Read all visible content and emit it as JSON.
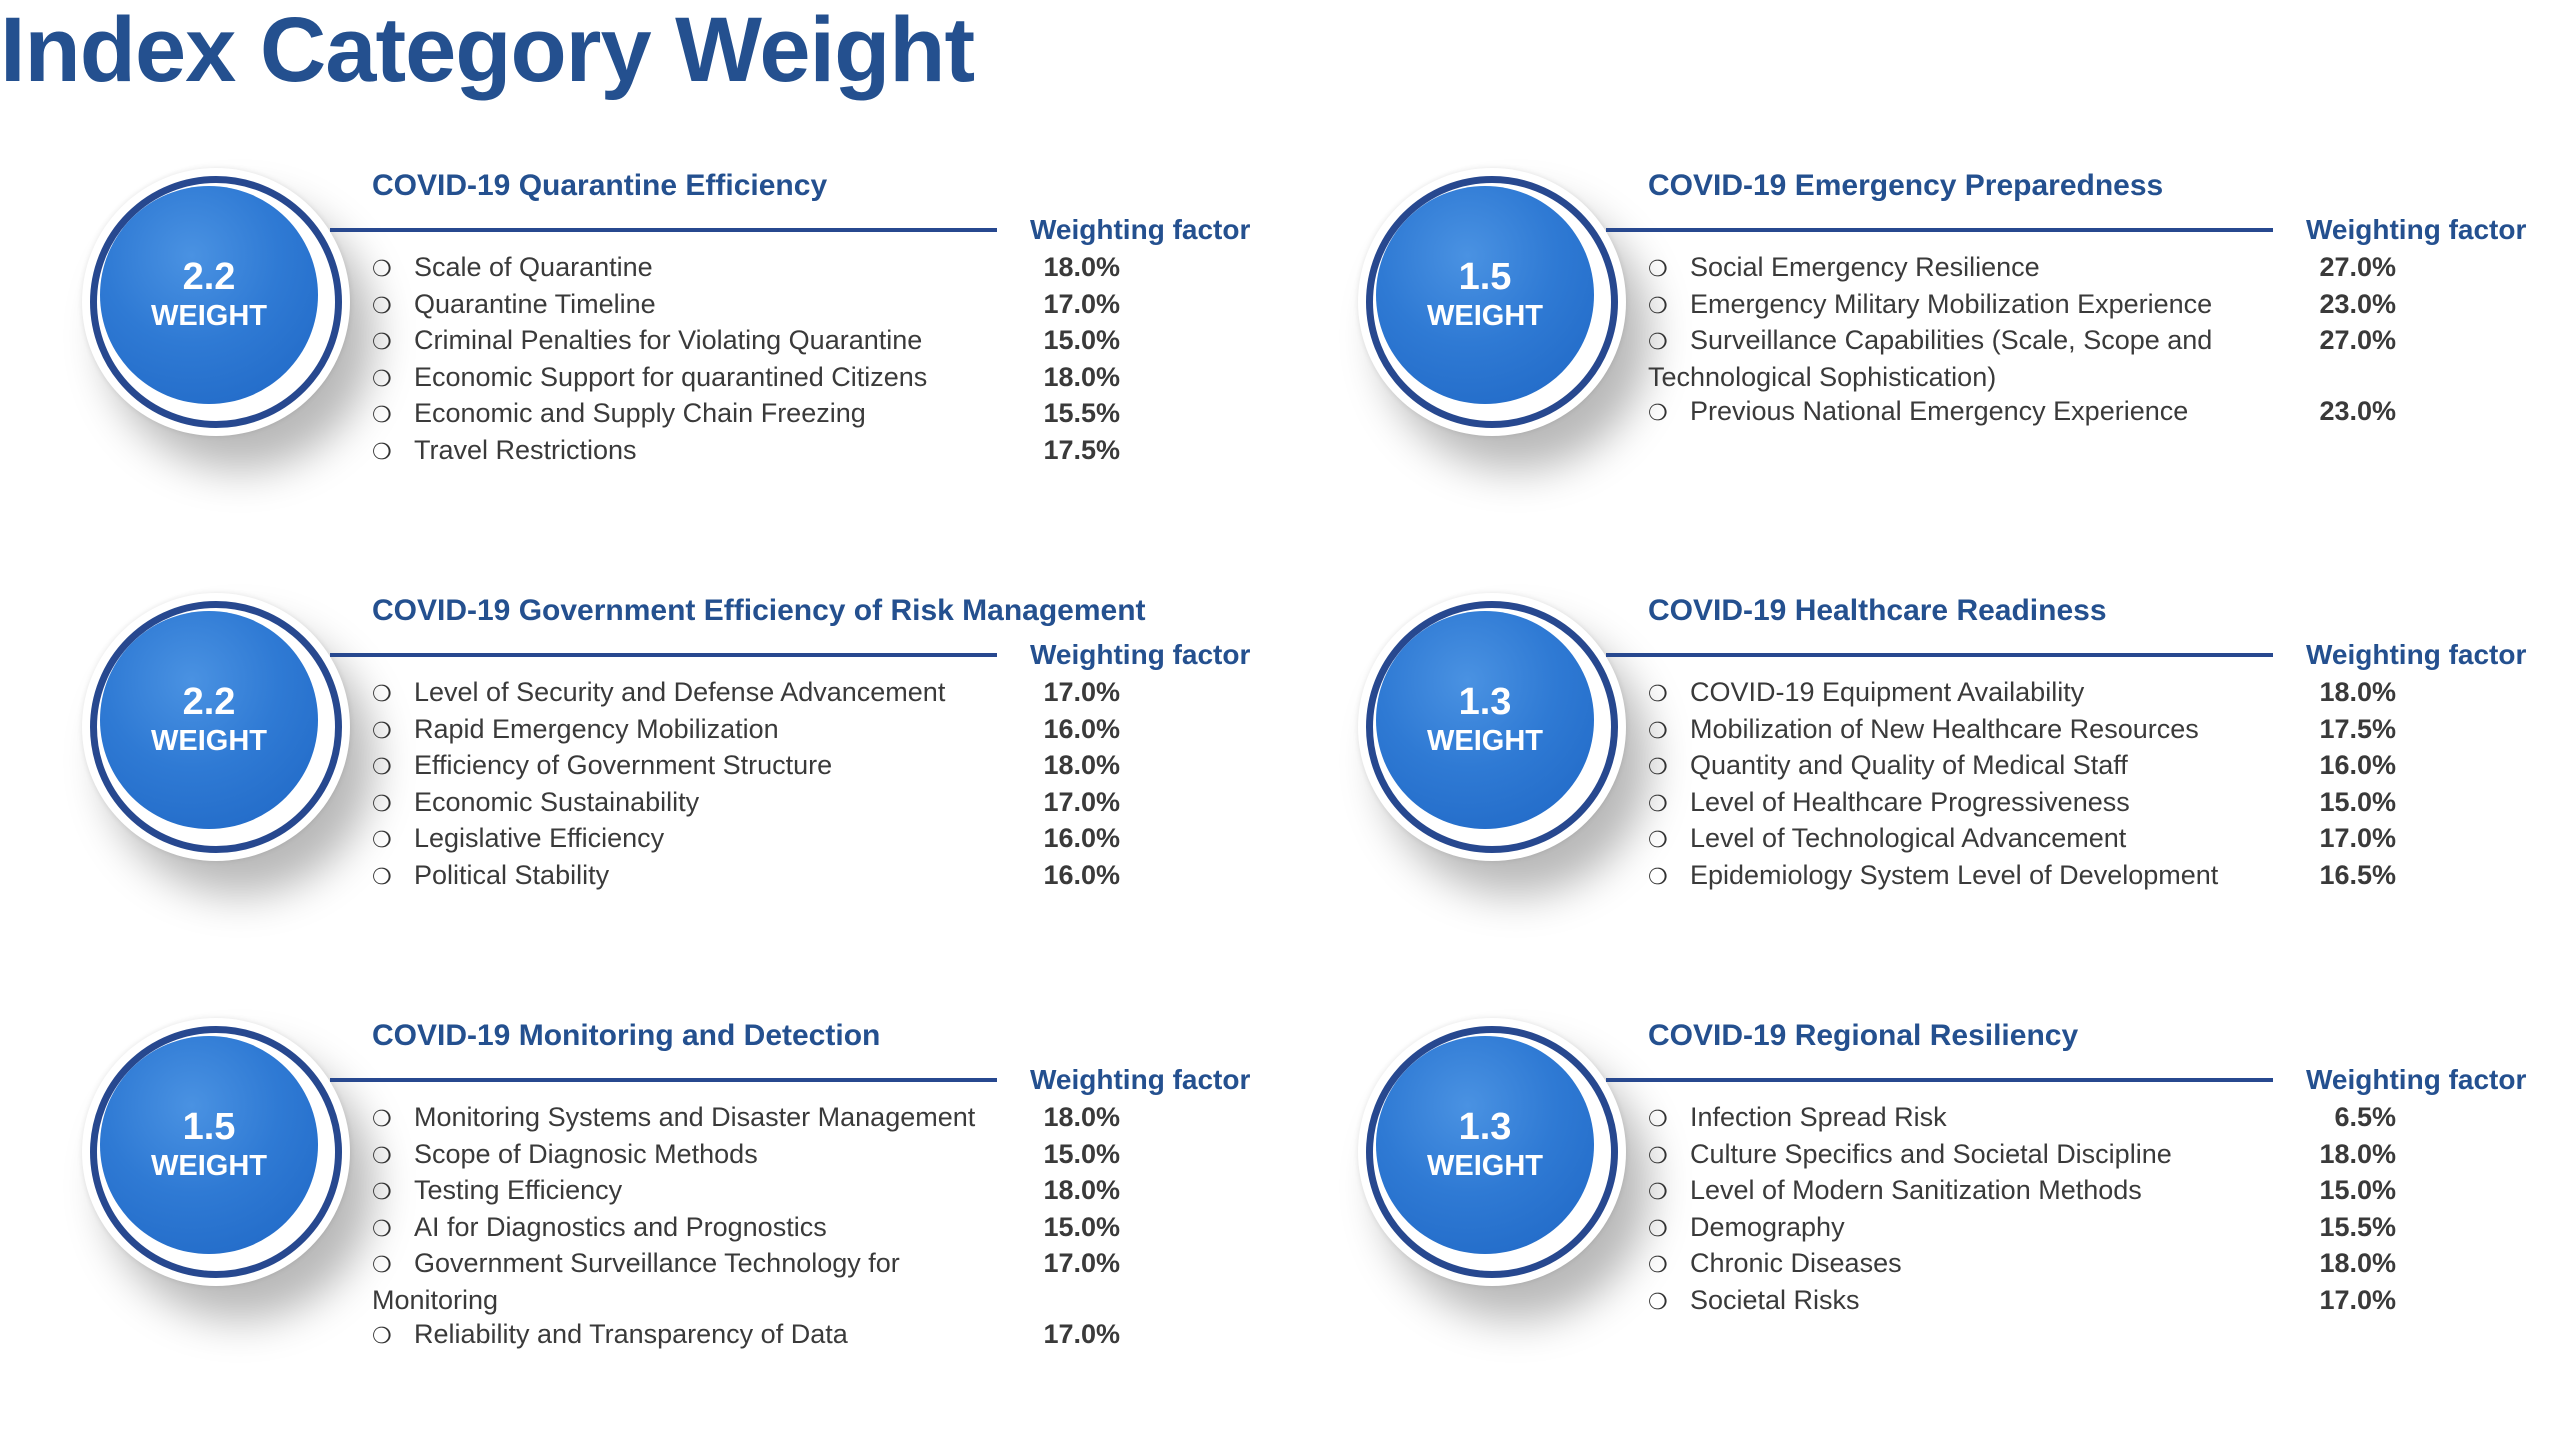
{
  "page": {
    "title": "Index Category Weight"
  },
  "common": {
    "weight_label": "WEIGHT",
    "factor_header": "Weighting factor",
    "bullet": "❍"
  },
  "panels": [
    {
      "title": "COVID-19 Quarantine Efficiency",
      "weight": "2.2",
      "items": [
        {
          "label": "Scale of Quarantine",
          "value": "18.0%"
        },
        {
          "label": "Quarantine Timeline",
          "value": "17.0%"
        },
        {
          "label": "Criminal Penalties for Violating Quarantine",
          "value": "15.0%"
        },
        {
          "label": "Economic Support for quarantined Citizens",
          "value": "18.0%"
        },
        {
          "label": "Economic and Supply Chain Freezing",
          "value": "15.5%"
        },
        {
          "label": "Travel Restrictions",
          "value": "17.5%"
        }
      ]
    },
    {
      "title": "COVID-19 Emergency Preparedness",
      "weight": "1.5",
      "items": [
        {
          "label": "Social Emergency Resilience",
          "value": "27.0%"
        },
        {
          "label": "Emergency Military Mobilization Experience",
          "value": "23.0%"
        },
        {
          "label": "Surveillance Capabilities (Scale, Scope and Technological Sophistication)",
          "value": "27.0%"
        },
        {
          "label": "Previous National Emergency Experience",
          "value": "23.0%"
        }
      ]
    },
    {
      "title": "COVID-19 Government Efficiency of Risk Management",
      "weight": "2.2",
      "items": [
        {
          "label": "Level of Security and Defense Advancement",
          "value": "17.0%"
        },
        {
          "label": "Rapid Emergency Mobilization",
          "value": "16.0%"
        },
        {
          "label": "Efficiency of Government Structure",
          "value": "18.0%"
        },
        {
          "label": "Economic Sustainability",
          "value": "17.0%"
        },
        {
          "label": "Legislative Efficiency",
          "value": "16.0%"
        },
        {
          "label": "Political Stability",
          "value": "16.0%"
        }
      ]
    },
    {
      "title": "COVID-19 Healthcare Readiness",
      "weight": "1.3",
      "items": [
        {
          "label": "COVID-19 Equipment Availability",
          "value": "18.0%"
        },
        {
          "label": "Mobilization of New Healthcare Resources",
          "value": "17.5%"
        },
        {
          "label": "Quantity and Quality of Medical Staff",
          "value": "16.0%"
        },
        {
          "label": "Level of Healthcare Progressiveness",
          "value": "15.0%"
        },
        {
          "label": "Level of Technological Advancement",
          "value": "17.0%"
        },
        {
          "label": "Epidemiology System Level of Development",
          "value": "16.5%"
        }
      ]
    },
    {
      "title": "COVID-19 Monitoring and Detection",
      "weight": "1.5",
      "items": [
        {
          "label": "Monitoring Systems and Disaster Management",
          "value": "18.0%"
        },
        {
          "label": "Scope of Diagnosic Methods",
          "value": "15.0%"
        },
        {
          "label": "Testing Efficiency",
          "value": "18.0%"
        },
        {
          "label": "AI for Diagnostics and Prognostics",
          "value": "15.0%"
        },
        {
          "label": "Government Surveillance Technology for Monitoring",
          "value": "17.0%"
        },
        {
          "label": "Reliability and Transparency of Data",
          "value": "17.0%"
        }
      ]
    },
    {
      "title": "COVID-19 Regional Resiliency",
      "weight": "1.3",
      "items": [
        {
          "label": "Infection Spread Risk",
          "value": "6.5%"
        },
        {
          "label": "Culture Specifics and Societal Discipline",
          "value": "18.0%"
        },
        {
          "label": "Level of Modern Sanitization Methods",
          "value": "15.0%"
        },
        {
          "label": "Demography",
          "value": "15.5%"
        },
        {
          "label": "Chronic Diseases",
          "value": "18.0%"
        },
        {
          "label": "Societal Risks",
          "value": "17.0%"
        }
      ]
    }
  ]
}
